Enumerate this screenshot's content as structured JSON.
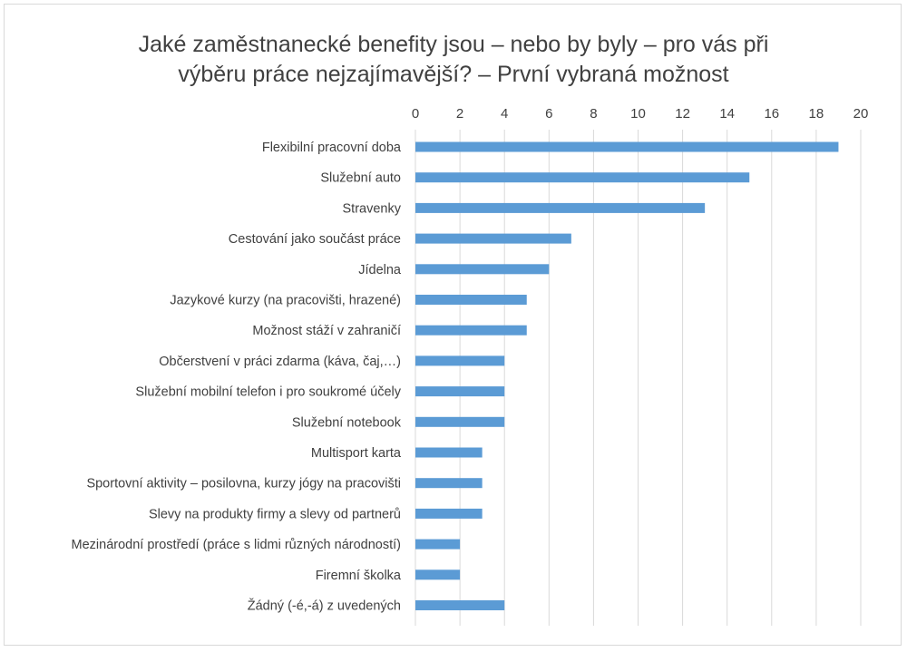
{
  "chart_data": {
    "type": "bar",
    "orientation": "horizontal",
    "title_lines": [
      "Jaké zaměstnanecké benefity jsou – nebo by byly – pro vás při",
      "výběru práce nejzajímavější? – První vybraná možnost"
    ],
    "categories": [
      "Flexibilní pracovní doba",
      "Služební auto",
      "Stravenky",
      "Cestování jako součást práce",
      "Jídelna",
      "Jazykové kurzy (na pracovišti, hrazené)",
      "Možnost stáží v zahraničí",
      "Občerstvení v práci zdarma (káva, čaj,…)",
      "Služební mobilní telefon i pro soukromé účely",
      "Služební notebook",
      "Multisport karta",
      "Sportovní aktivity – posilovna, kurzy jógy na pracovišti",
      "Slevy na produkty firmy a slevy od partnerů",
      "Mezinárodní prostředí (práce s lidmi různých národností)",
      "Firemní školka",
      "Žádný (-é,-á) z uvedených"
    ],
    "values": [
      19,
      15,
      13,
      7,
      6,
      5,
      5,
      4,
      4,
      4,
      3,
      3,
      3,
      2,
      2,
      4
    ],
    "xlim": [
      0,
      20
    ],
    "x_ticks": [
      0,
      2,
      4,
      6,
      8,
      10,
      12,
      14,
      16,
      18,
      20
    ],
    "x_axis_position": "top",
    "grid": true,
    "legend": "none",
    "bar_color": "#5b9bd5",
    "grid_color": "#d9d9d9"
  }
}
